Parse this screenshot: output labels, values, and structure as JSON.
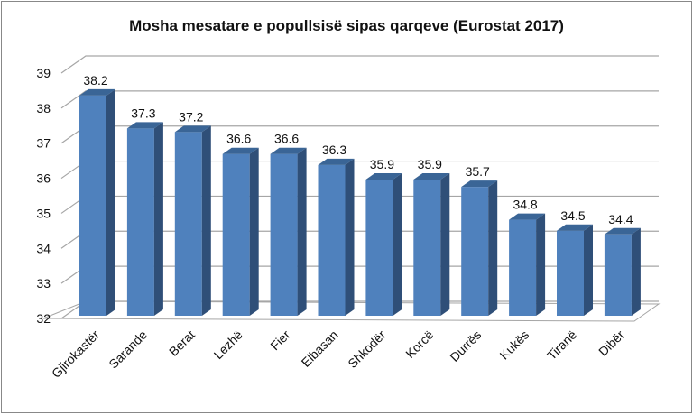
{
  "chart_data": {
    "type": "bar",
    "title": "Mosha mesatare e popullsisë sipas qarqeve (Eurostat 2017)",
    "xlabel": "",
    "ylabel": "",
    "ylim": [
      32,
      39
    ],
    "yticks": [
      "32",
      "33",
      "34",
      "35",
      "36",
      "37",
      "38",
      "39"
    ],
    "grid": true,
    "legend": "none",
    "categories": [
      "Gjirokastër",
      "Sarande",
      "Berat",
      "Lezhë",
      "Fier",
      "Elbasan",
      "Shkodër",
      "Korcë",
      "Durrës",
      "Kukës",
      "Tiranë",
      "Dibër"
    ],
    "values": [
      38.2,
      37.3,
      37.2,
      36.6,
      36.6,
      36.3,
      35.9,
      35.9,
      35.7,
      34.8,
      34.5,
      34.4
    ],
    "data_labels": [
      "38.2",
      "37.3",
      "37.2",
      "36.6",
      "36.6",
      "36.3",
      "35.9",
      "35.9",
      "35.7",
      "34.8",
      "34.5",
      "34.4"
    ],
    "colors": {
      "front": "#4f81bd",
      "side": "#2f4f78",
      "top": "#3a6596",
      "grid": "#a6a6a6"
    }
  }
}
